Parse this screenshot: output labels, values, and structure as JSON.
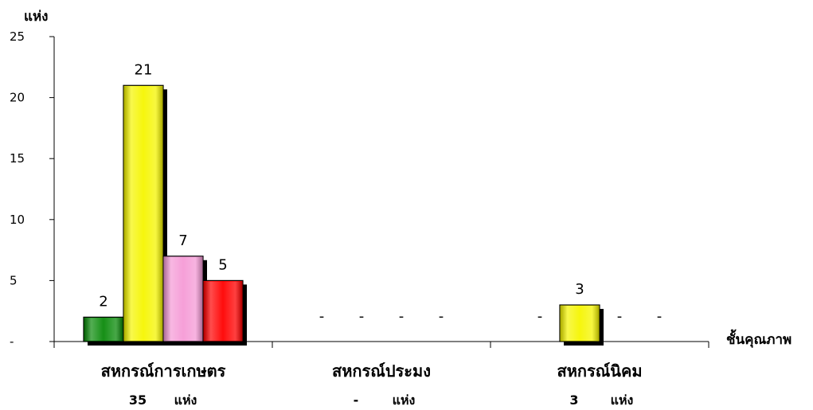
{
  "chart_data": {
    "type": "bar",
    "ylabel": "แห่ง",
    "xlabel": "ชั้นคุณภาพ",
    "ylim": [
      0,
      25
    ],
    "yticks": [
      0,
      5,
      10,
      15,
      20,
      25
    ],
    "ytick_labels": [
      "-",
      "5",
      "10",
      "15",
      "20",
      "25"
    ],
    "zero_label": "-",
    "categories": [
      "สหกรณ์การเกษตร",
      "สหกรณ์ประมง",
      "สหกรณ์นิคม"
    ],
    "category_totals": [
      {
        "value": "35",
        "unit": "แห่ง"
      },
      {
        "value": "-",
        "unit": "แห่ง"
      },
      {
        "value": "3",
        "unit": "แห่ง"
      }
    ],
    "series": [
      {
        "values": [
          2,
          0,
          0
        ],
        "color": "#0a8a0a"
      },
      {
        "values": [
          21,
          0,
          3
        ],
        "color": "#f5f500"
      },
      {
        "values": [
          7,
          0,
          0
        ],
        "color": "#f59ad6"
      },
      {
        "values": [
          5,
          0,
          0
        ],
        "color": "#ff0000"
      }
    ],
    "grid": false,
    "legend": "none"
  }
}
